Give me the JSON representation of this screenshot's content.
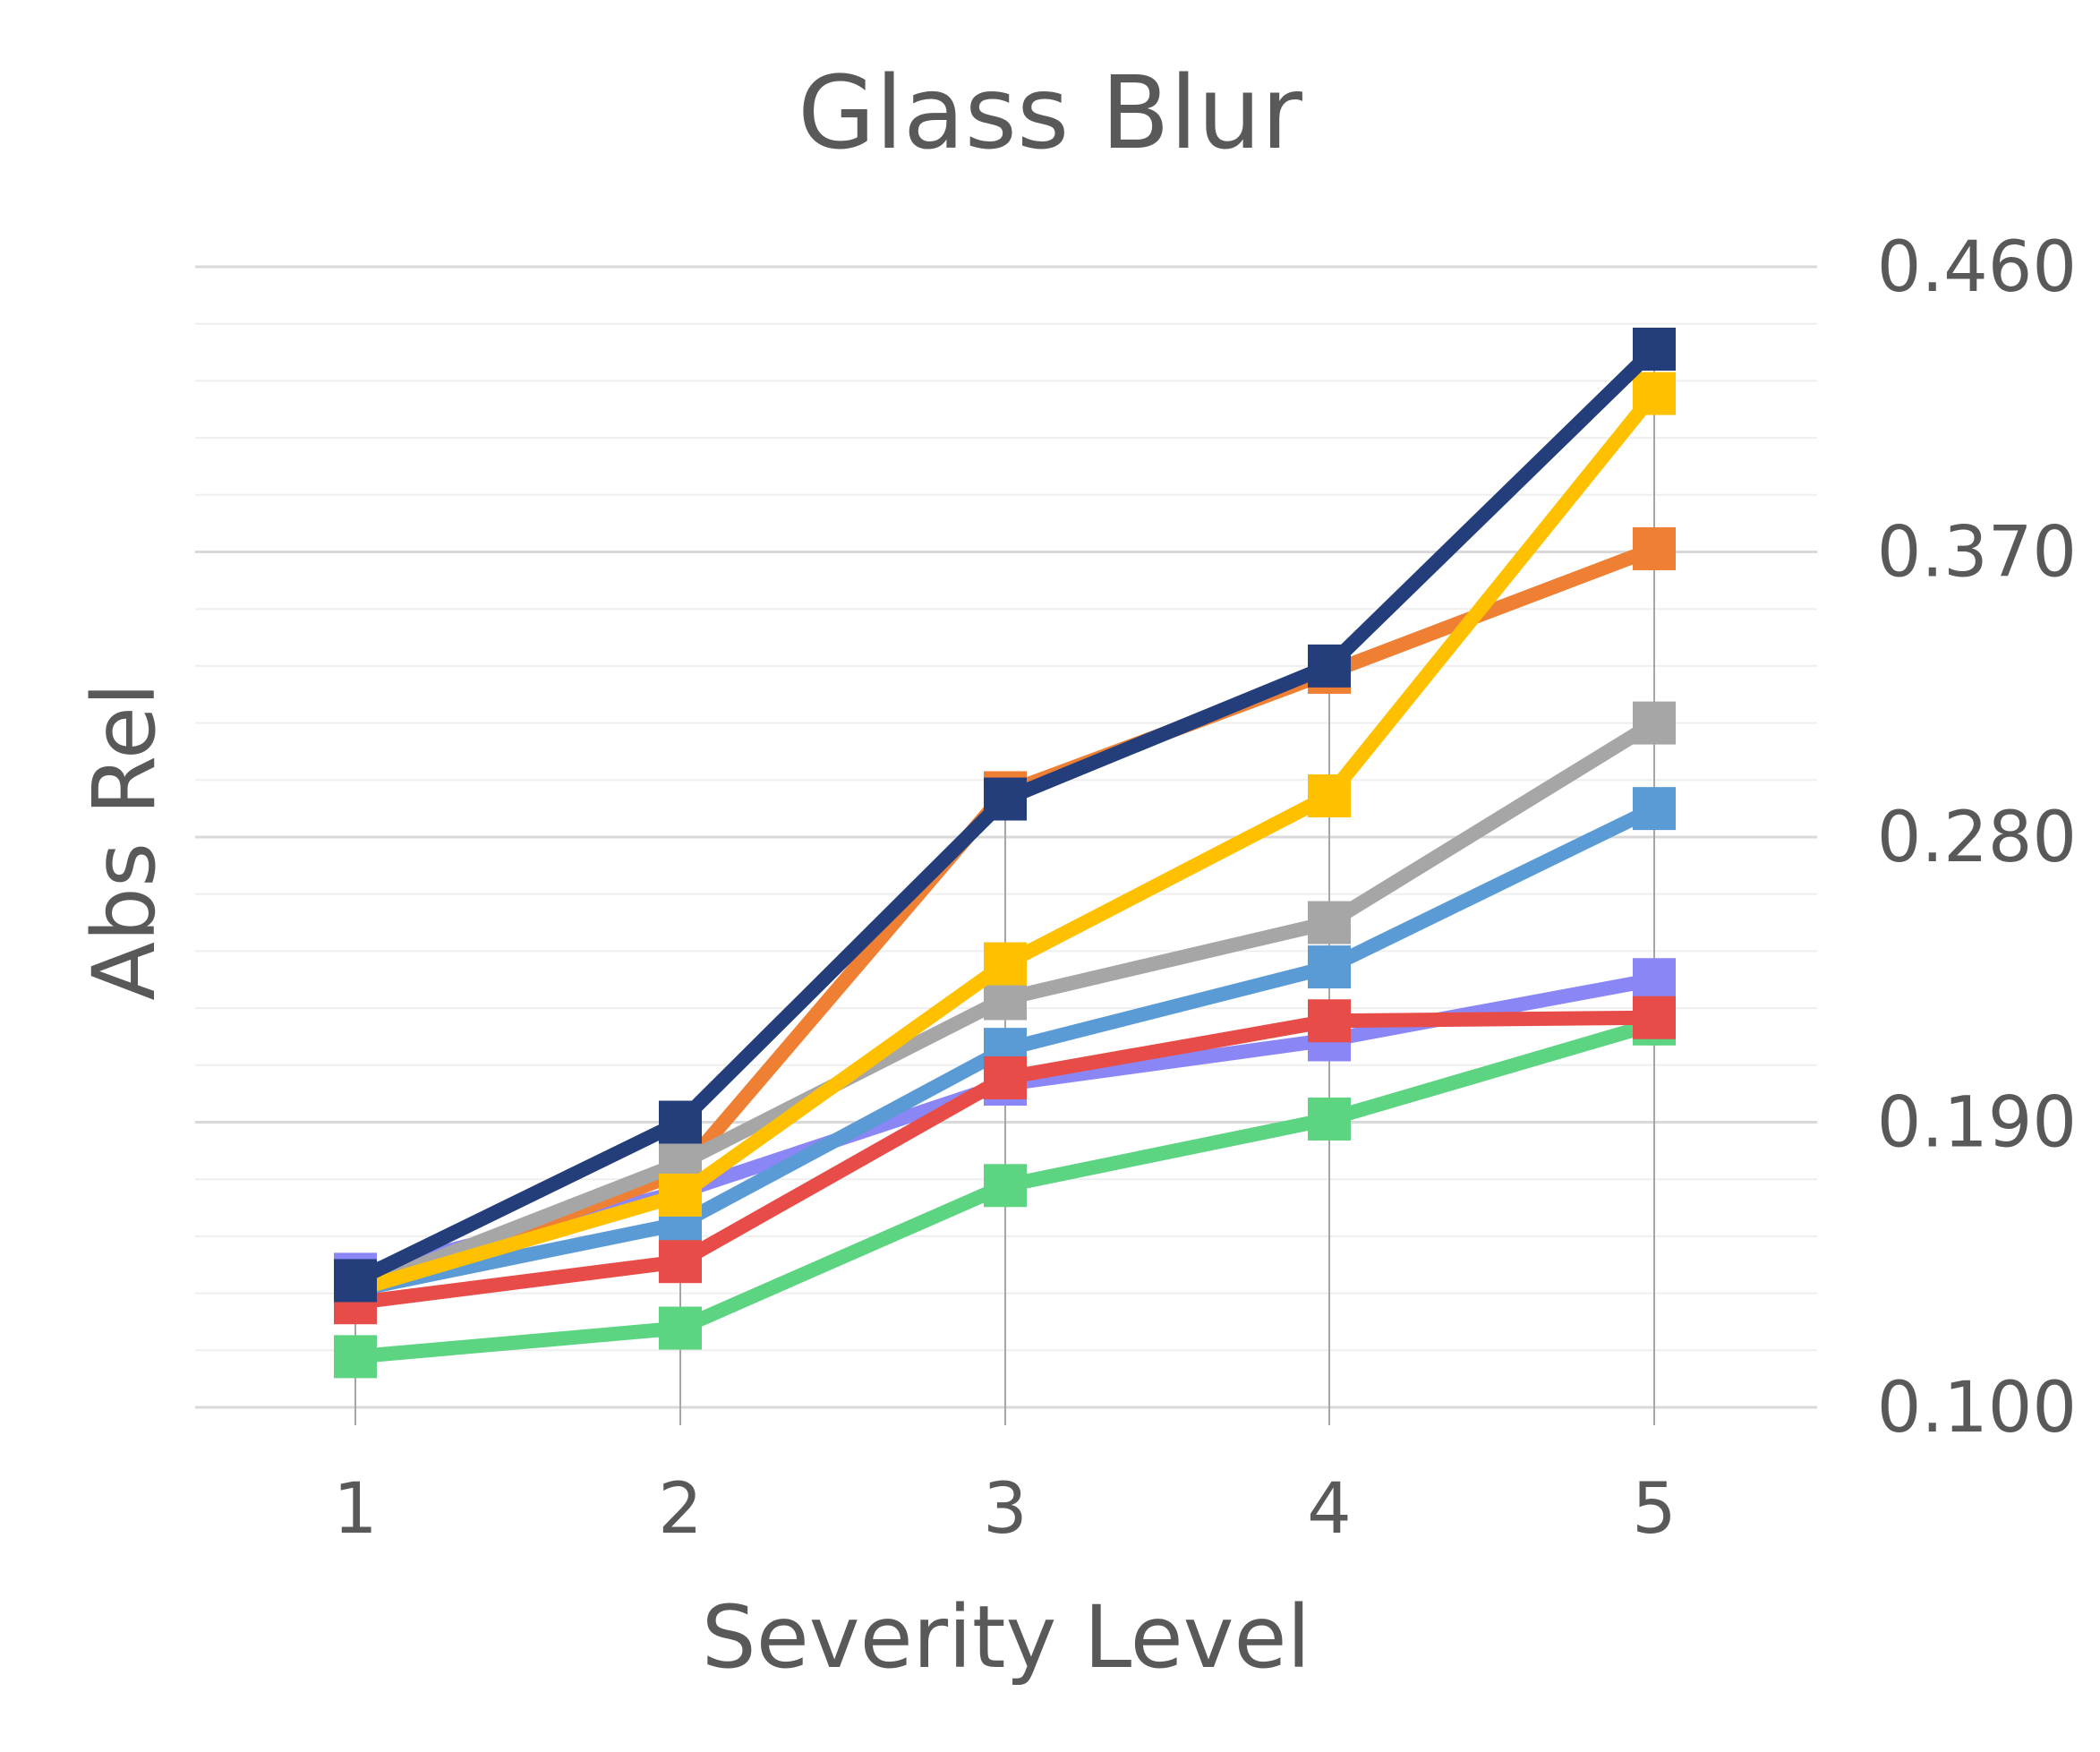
{
  "chart_data": {
    "type": "line",
    "title": "Glass Blur",
    "xlabel": "Severity Level",
    "ylabel": "Abs Rel",
    "x": [
      1,
      2,
      3,
      4,
      5
    ],
    "x_tick_labels": [
      "1",
      "2",
      "3",
      "4",
      "5"
    ],
    "ylim": [
      0.1,
      0.46
    ],
    "y_ticks": [
      0.1,
      0.19,
      0.28,
      0.37,
      0.46
    ],
    "y_tick_labels": [
      "0.100",
      "0.190",
      "0.280",
      "0.370",
      "0.460"
    ],
    "y_minor_step": 0.018,
    "y_axis_side": "right",
    "grid": true,
    "legend": "none",
    "series": [
      {
        "color": "#8b86f5",
        "values": [
          0.142,
          0.168,
          0.202,
          0.216,
          0.235
        ]
      },
      {
        "color": "#ef7f33",
        "values": [
          0.137,
          0.174,
          0.294,
          0.332,
          0.371
        ]
      },
      {
        "color": "#a6a6a6",
        "values": [
          0.137,
          0.177,
          0.229,
          0.253,
          0.316
        ]
      },
      {
        "color": "#5b9bd5",
        "values": [
          0.137,
          0.158,
          0.213,
          0.239,
          0.289
        ]
      },
      {
        "color": "#ffc000",
        "values": [
          0.137,
          0.167,
          0.24,
          0.293,
          0.42
        ]
      },
      {
        "color": "#5cd482",
        "values": [
          0.116,
          0.125,
          0.17,
          0.191,
          0.221
        ]
      },
      {
        "color": "#e84c48",
        "values": [
          0.133,
          0.146,
          0.204,
          0.222,
          0.223
        ]
      },
      {
        "color": "#233e7a",
        "values": [
          0.14,
          0.19,
          0.292,
          0.334,
          0.434
        ]
      }
    ]
  }
}
